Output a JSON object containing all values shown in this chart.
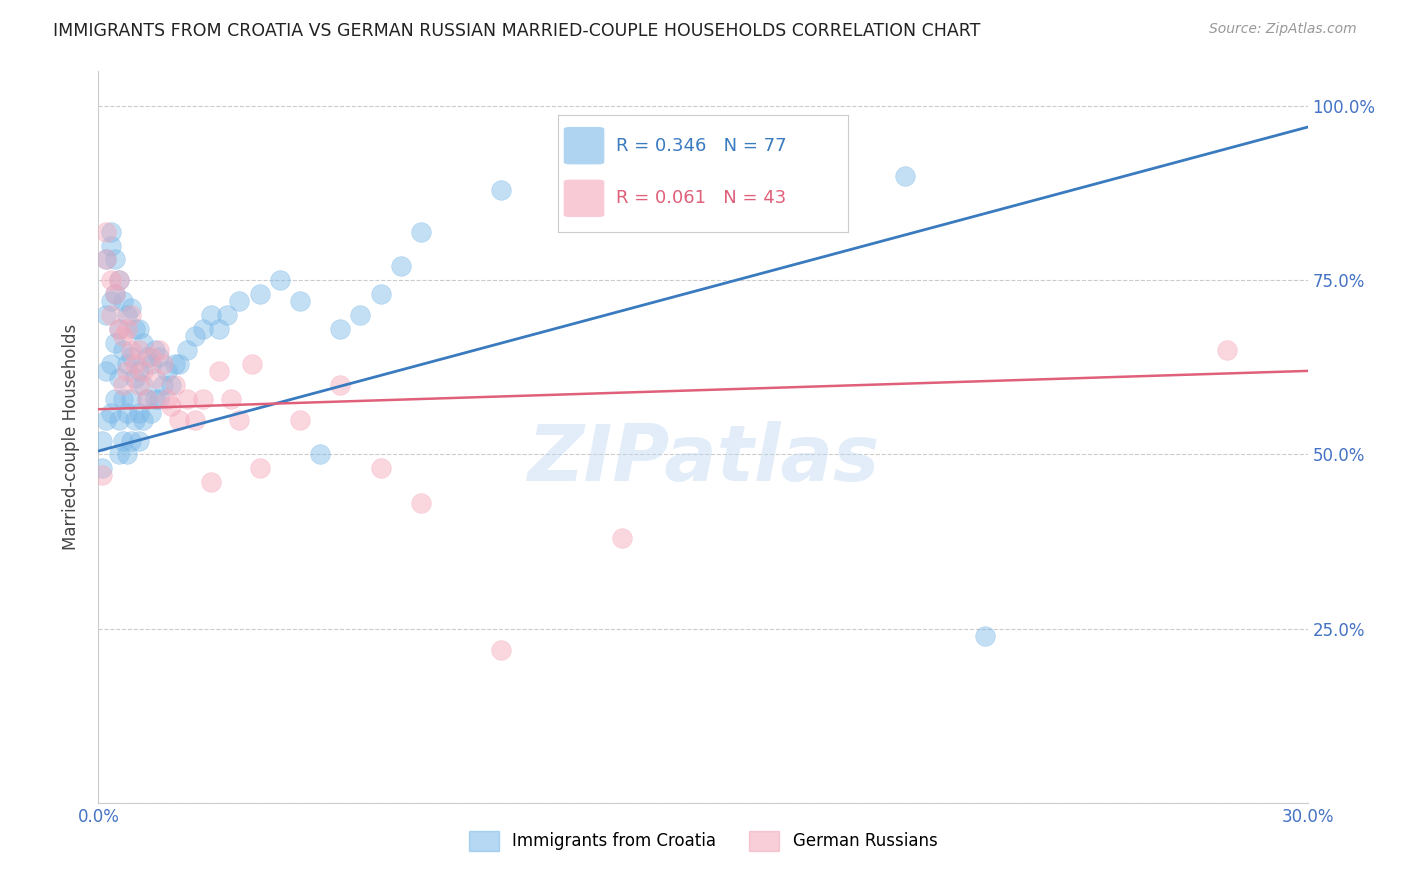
{
  "title": "IMMIGRANTS FROM CROATIA VS GERMAN RUSSIAN MARRIED-COUPLE HOUSEHOLDS CORRELATION CHART",
  "source": "Source: ZipAtlas.com",
  "ylabel": "Married-couple Households",
  "xlim": [
    0.0,
    0.3
  ],
  "ylim": [
    0.0,
    1.05
  ],
  "xticks": [
    0.0,
    0.05,
    0.1,
    0.15,
    0.2,
    0.25,
    0.3
  ],
  "xticklabels": [
    "0.0%",
    "",
    "",
    "",
    "",
    "",
    "30.0%"
  ],
  "yticks_right": [
    0.25,
    0.5,
    0.75,
    1.0
  ],
  "yticklabels_right": [
    "25.0%",
    "50.0%",
    "75.0%",
    "100.0%"
  ],
  "blue_R": 0.346,
  "blue_N": 77,
  "pink_R": 0.061,
  "pink_N": 43,
  "blue_color": "#7ab8e8",
  "pink_color": "#f4a7b9",
  "blue_line_color": "#3a7abf",
  "pink_line_color": "#e0607a",
  "watermark_text": "ZIPatlas",
  "legend_label_blue": "Immigrants from Croatia",
  "legend_label_pink": "German Russians",
  "blue_points_x": [
    0.001,
    0.001,
    0.002,
    0.002,
    0.002,
    0.002,
    0.003,
    0.003,
    0.003,
    0.003,
    0.003,
    0.004,
    0.004,
    0.004,
    0.004,
    0.005,
    0.005,
    0.005,
    0.005,
    0.005,
    0.006,
    0.006,
    0.006,
    0.006,
    0.007,
    0.007,
    0.007,
    0.007,
    0.008,
    0.008,
    0.008,
    0.008,
    0.009,
    0.009,
    0.009,
    0.01,
    0.01,
    0.01,
    0.01,
    0.011,
    0.011,
    0.011,
    0.012,
    0.012,
    0.013,
    0.013,
    0.014,
    0.014,
    0.015,
    0.015,
    0.016,
    0.017,
    0.018,
    0.019,
    0.02,
    0.022,
    0.024,
    0.026,
    0.028,
    0.03,
    0.032,
    0.035,
    0.04,
    0.045,
    0.05,
    0.055,
    0.06,
    0.065,
    0.07,
    0.075,
    0.08,
    0.1,
    0.12,
    0.15,
    0.18,
    0.2,
    0.22
  ],
  "blue_points_y": [
    0.52,
    0.48,
    0.55,
    0.62,
    0.7,
    0.78,
    0.56,
    0.63,
    0.72,
    0.8,
    0.82,
    0.58,
    0.66,
    0.73,
    0.78,
    0.5,
    0.55,
    0.61,
    0.68,
    0.75,
    0.52,
    0.58,
    0.65,
    0.72,
    0.5,
    0.56,
    0.63,
    0.7,
    0.52,
    0.58,
    0.64,
    0.71,
    0.55,
    0.61,
    0.68,
    0.52,
    0.56,
    0.62,
    0.68,
    0.55,
    0.6,
    0.66,
    0.58,
    0.64,
    0.56,
    0.63,
    0.58,
    0.65,
    0.58,
    0.64,
    0.6,
    0.62,
    0.6,
    0.63,
    0.63,
    0.65,
    0.67,
    0.68,
    0.7,
    0.68,
    0.7,
    0.72,
    0.73,
    0.75,
    0.72,
    0.5,
    0.68,
    0.7,
    0.73,
    0.77,
    0.82,
    0.88,
    0.88,
    0.88,
    0.95,
    0.9,
    0.24
  ],
  "pink_points_x": [
    0.001,
    0.002,
    0.002,
    0.003,
    0.003,
    0.004,
    0.005,
    0.005,
    0.006,
    0.006,
    0.007,
    0.007,
    0.008,
    0.008,
    0.009,
    0.01,
    0.01,
    0.011,
    0.012,
    0.013,
    0.014,
    0.015,
    0.016,
    0.017,
    0.018,
    0.019,
    0.02,
    0.022,
    0.024,
    0.026,
    0.028,
    0.03,
    0.033,
    0.035,
    0.038,
    0.04,
    0.05,
    0.06,
    0.07,
    0.08,
    0.1,
    0.13,
    0.28
  ],
  "pink_points_y": [
    0.47,
    0.82,
    0.78,
    0.7,
    0.75,
    0.73,
    0.68,
    0.75,
    0.6,
    0.67,
    0.62,
    0.68,
    0.65,
    0.7,
    0.63,
    0.6,
    0.65,
    0.62,
    0.58,
    0.64,
    0.61,
    0.65,
    0.63,
    0.58,
    0.57,
    0.6,
    0.55,
    0.58,
    0.55,
    0.58,
    0.46,
    0.62,
    0.58,
    0.55,
    0.63,
    0.48,
    0.55,
    0.6,
    0.48,
    0.43,
    0.22,
    0.38,
    0.65
  ],
  "tick_color": "#4472c4",
  "background_color": "#ffffff",
  "grid_color": "#c0c0c0",
  "blue_line_x": [
    0.0,
    0.3
  ],
  "blue_line_y": [
    0.505,
    0.97
  ],
  "pink_line_x": [
    0.0,
    0.3
  ],
  "pink_line_y": [
    0.565,
    0.62
  ]
}
